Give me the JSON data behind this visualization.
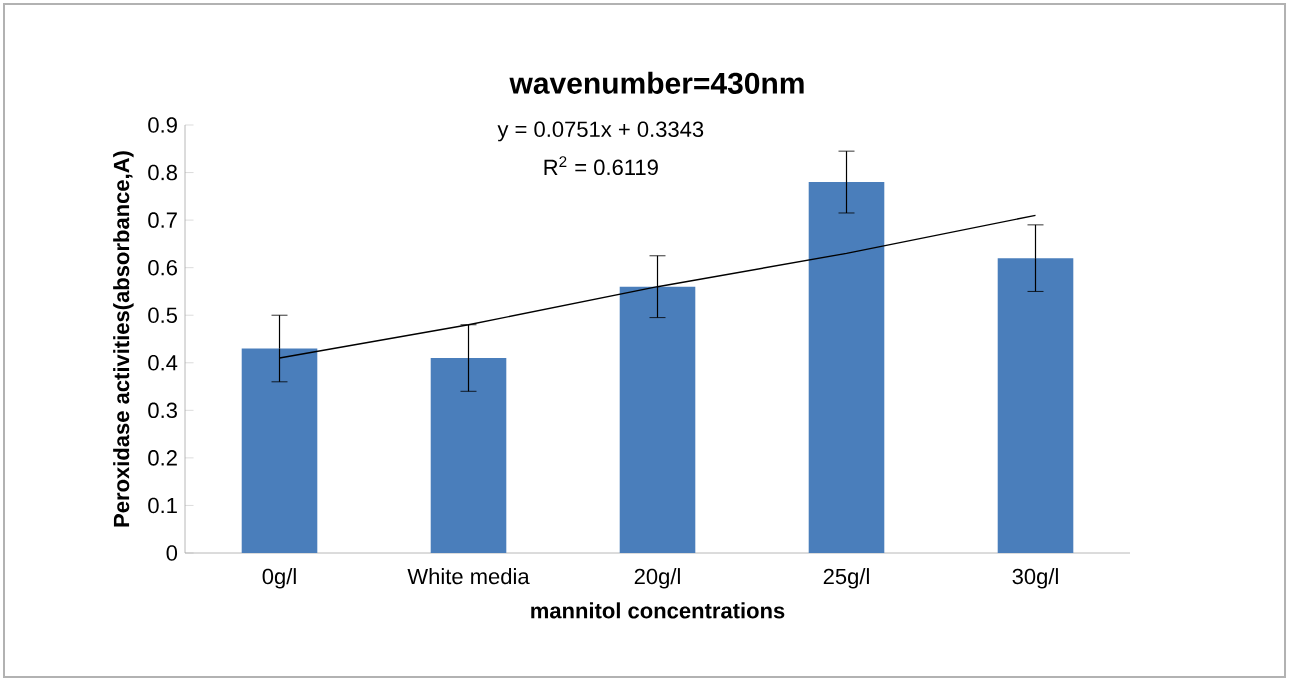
{
  "chart_data": {
    "type": "bar",
    "title": "wavenumber=430nm",
    "xlabel": "mannitol concentrations",
    "ylabel": "Peroxidase activities(absorbance,A)",
    "categories": [
      "0g/l",
      "White media",
      "20g/l",
      "25g/l",
      "30g/l"
    ],
    "series": [
      {
        "color": "#4a7ebb",
        "values": [
          0.43,
          0.41,
          0.56,
          0.78,
          0.62
        ],
        "errors": [
          0.07,
          0.07,
          0.065,
          0.065,
          0.07
        ]
      },
      {
        "type": "line",
        "color": "#000000",
        "values": [
          0.41,
          0.48,
          0.56,
          0.63,
          0.71
        ]
      }
    ],
    "ylim": [
      0,
      0.9
    ],
    "yticks": [
      0,
      0.1,
      0.2,
      0.3,
      0.4,
      0.5,
      0.6,
      0.7,
      0.8,
      0.9
    ],
    "annotations": [
      "y = 0.0751x + 0.3343",
      "R$^{2}$ = 0.6119"
    ]
  }
}
